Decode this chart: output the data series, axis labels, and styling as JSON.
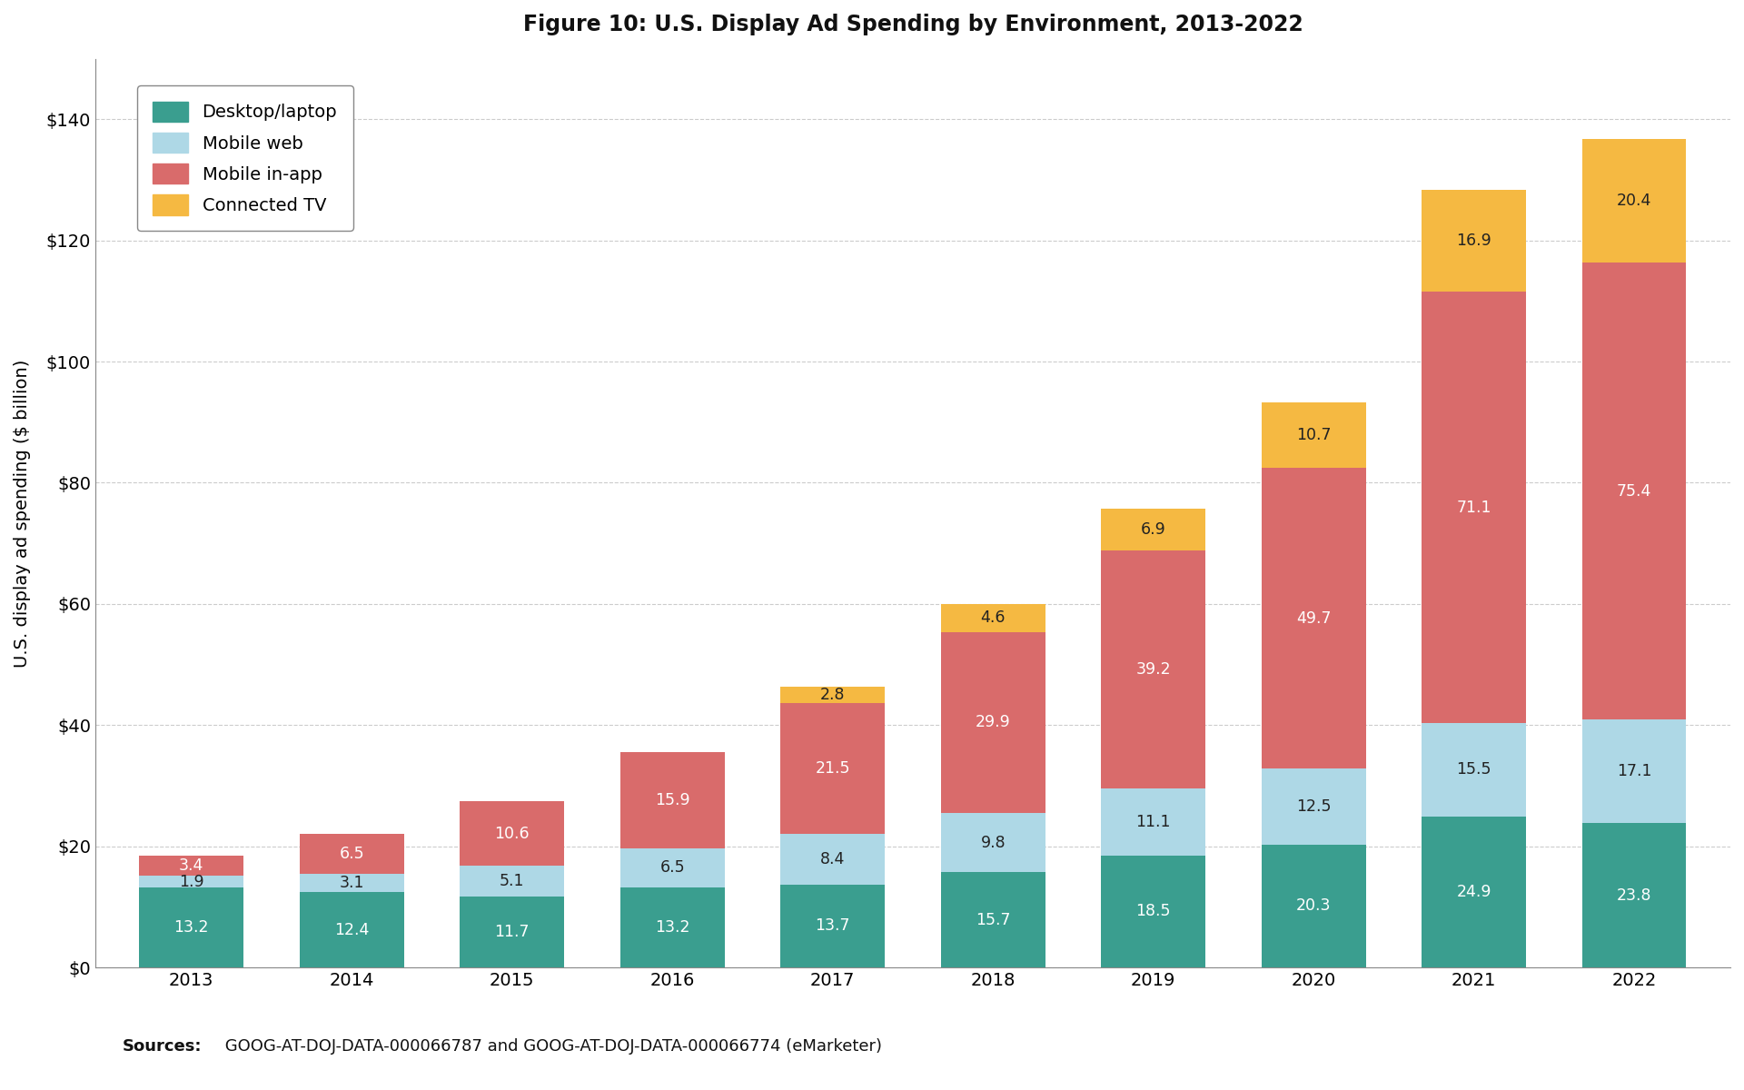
{
  "years": [
    2013,
    2014,
    2015,
    2016,
    2017,
    2018,
    2019,
    2020,
    2021,
    2022
  ],
  "desktop": [
    13.2,
    12.4,
    11.7,
    13.2,
    13.7,
    15.7,
    18.5,
    20.3,
    24.9,
    23.8
  ],
  "mobile_web": [
    1.9,
    3.1,
    5.1,
    6.5,
    8.4,
    9.8,
    11.1,
    12.5,
    15.5,
    17.1
  ],
  "mobile_inapp": [
    3.4,
    6.5,
    10.6,
    15.9,
    21.5,
    29.9,
    39.2,
    49.7,
    71.1,
    75.4
  ],
  "connected_tv": [
    0.0,
    0.0,
    0.0,
    0.0,
    2.8,
    4.6,
    6.9,
    10.7,
    16.9,
    20.4
  ],
  "colors": {
    "desktop": "#3a9e8f",
    "mobile_web": "#aed8e6",
    "mobile_inapp": "#d96b6b",
    "connected_tv": "#f5b942"
  },
  "title": "Figure 10: U.S. Display Ad Spending by Environment, 2013-2022",
  "ylabel": "U.S. display ad spending ($ billion)",
  "ylim": [
    0,
    150
  ],
  "yticks": [
    0,
    20,
    40,
    60,
    80,
    100,
    120,
    140
  ],
  "ytick_labels": [
    "$0",
    "$20",
    "$40",
    "$60",
    "$80",
    "$100",
    "$120",
    "$140"
  ],
  "legend_labels": [
    "Desktop/laptop",
    "Mobile web",
    "Mobile in-app",
    "Connected TV"
  ],
  "source_bold": "Sources:",
  "source_rest": " GOOG-AT-DOJ-DATA-000066787 and GOOG-AT-DOJ-DATA-000066774 (eMarketer)",
  "background_color": "#ffffff",
  "grid_color": "#cccccc"
}
